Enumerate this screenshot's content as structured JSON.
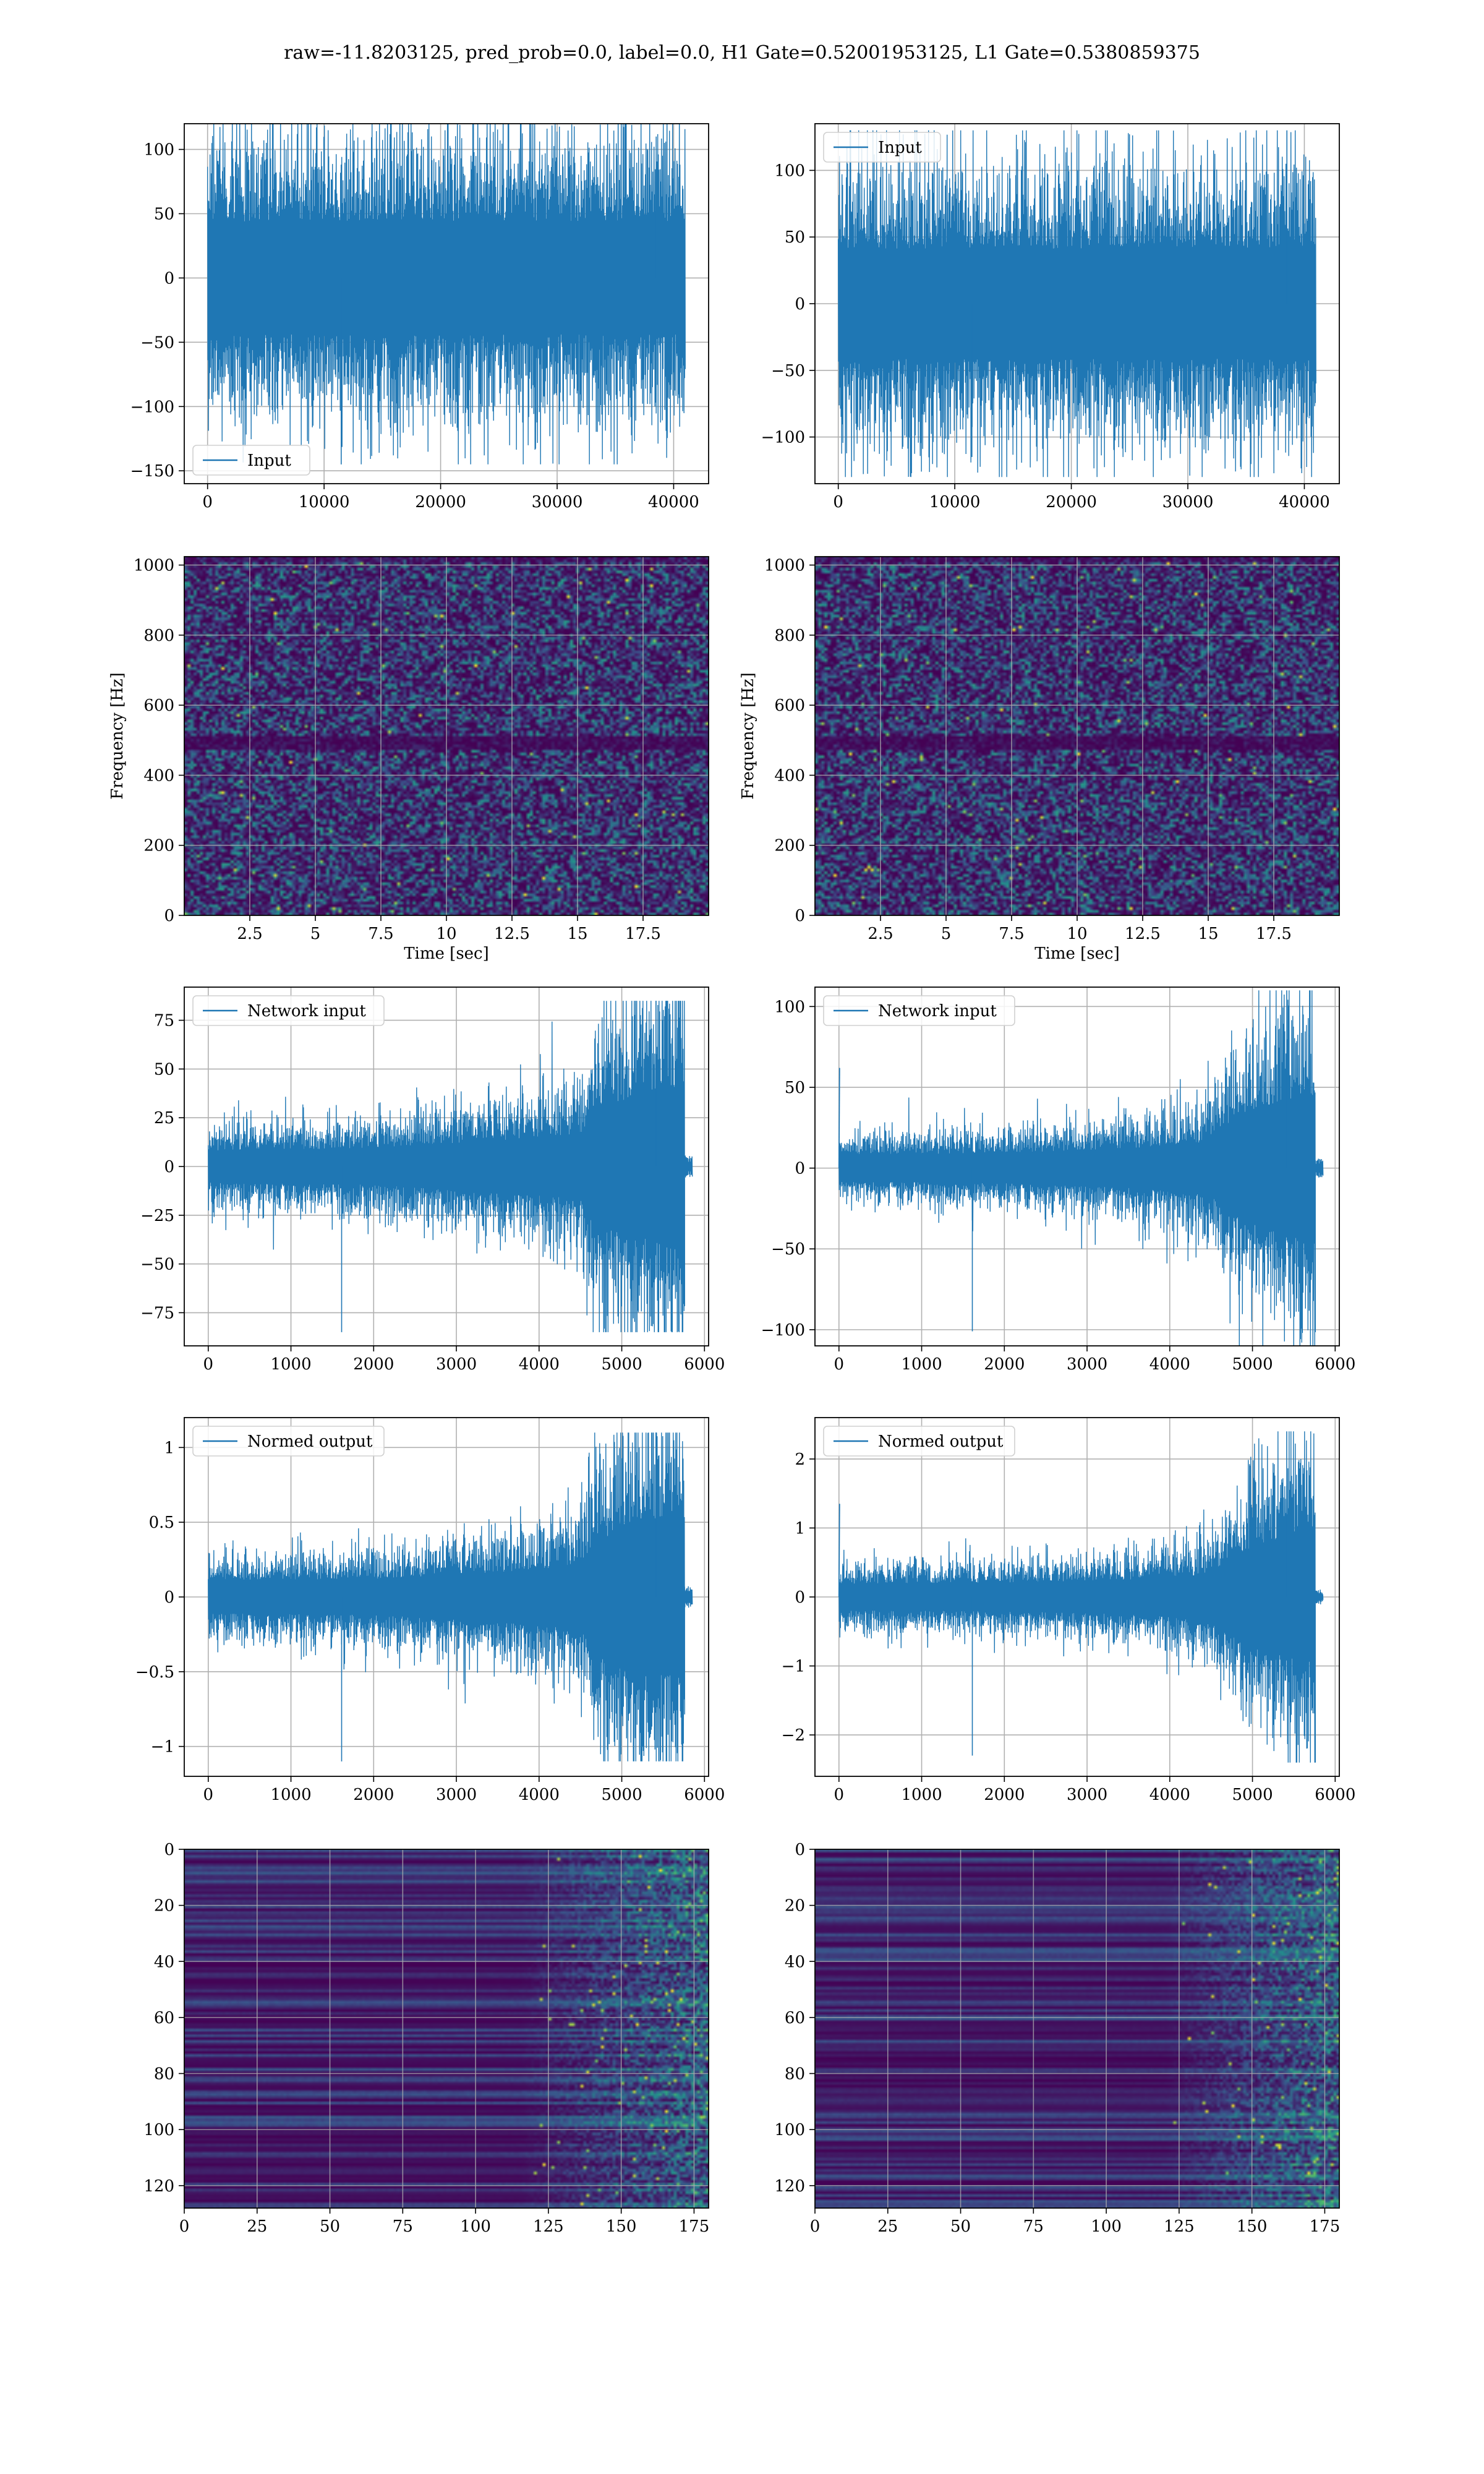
{
  "figure": {
    "suptitle": "raw=-11.8203125, pred_prob=0.0, label=0.0, H1 Gate=0.52001953125, L1 Gate=0.5380859375",
    "colors": {
      "line": "#1f77b4",
      "viridis_low": "#440154",
      "viridis_mid": "#21918c",
      "viridis_high": "#fde725",
      "grid": "#b0b0b0"
    }
  },
  "chart_data": [
    {
      "id": "h1-input",
      "type": "line",
      "series": [
        {
          "name": "Input",
          "n_points": 40960,
          "x_range": [
            0,
            40960
          ],
          "amplitude_mean": 0,
          "amplitude_envelope": 80,
          "y_extrema": [
            -145,
            110
          ]
        }
      ],
      "xlim": [
        -2000,
        43000
      ],
      "ylim": [
        -160,
        120
      ],
      "xticks": [
        0,
        10000,
        20000,
        30000,
        40000
      ],
      "yticks": [
        -150,
        -100,
        -50,
        0,
        50,
        100
      ],
      "legend": "lower-left",
      "grid": true,
      "xlabel": "",
      "ylabel": ""
    },
    {
      "id": "l1-input",
      "type": "line",
      "series": [
        {
          "name": "Input",
          "n_points": 40960,
          "x_range": [
            0,
            40960
          ],
          "amplitude_mean": 0,
          "amplitude_envelope": 75,
          "y_extrema": [
            -115,
            130
          ]
        }
      ],
      "xlim": [
        -2000,
        43000
      ],
      "ylim": [
        -135,
        135
      ],
      "xticks": [
        0,
        10000,
        20000,
        30000,
        40000
      ],
      "yticks": [
        -100,
        -50,
        0,
        50,
        100
      ],
      "legend": "upper-left",
      "grid": true,
      "xlabel": "",
      "ylabel": ""
    },
    {
      "id": "h1-spectrogram",
      "type": "heatmap",
      "xlim": [
        0,
        20
      ],
      "ylim": [
        0,
        1024
      ],
      "xticks": [
        2.5,
        5.0,
        7.5,
        10.0,
        12.5,
        15.0,
        17.5
      ],
      "yticks": [
        0,
        200,
        400,
        600,
        800,
        1000
      ],
      "xlabel": "Time [sec]",
      "ylabel": "Frequency [Hz]",
      "grid": true,
      "colormap": "viridis",
      "dark_band_hz": 500
    },
    {
      "id": "l1-spectrogram",
      "type": "heatmap",
      "xlim": [
        0,
        20
      ],
      "ylim": [
        0,
        1024
      ],
      "xticks": [
        2.5,
        5.0,
        7.5,
        10.0,
        12.5,
        15.0,
        17.5
      ],
      "yticks": [
        0,
        200,
        400,
        600,
        800,
        1000
      ],
      "xlabel": "Time [sec]",
      "ylabel": "Frequency [Hz]",
      "grid": true,
      "colormap": "viridis",
      "dark_band_hz": 500
    },
    {
      "id": "h1-network-input",
      "type": "line",
      "series": [
        {
          "name": "Network input",
          "n_points": 5760,
          "x_range": [
            0,
            5760
          ],
          "envelope": [
            {
              "x": 0,
              "a": 15
            },
            {
              "x": 2000,
              "a": 17
            },
            {
              "x": 3500,
              "a": 24
            },
            {
              "x": 4500,
              "a": 30
            },
            {
              "x": 4700,
              "a": 55
            },
            {
              "x": 5400,
              "a": 70
            },
            {
              "x": 5740,
              "a": 75
            }
          ],
          "tail": {
            "x_range": [
              5760,
              5850
            ],
            "a": 4
          },
          "y_extrema": [
            -85,
            85
          ]
        }
      ],
      "xlim": [
        -290,
        6050
      ],
      "ylim": [
        -92,
        92
      ],
      "xticks": [
        0,
        1000,
        2000,
        3000,
        4000,
        5000,
        6000
      ],
      "yticks": [
        -75,
        -50,
        -25,
        0,
        25,
        50,
        75
      ],
      "legend": "upper-left",
      "grid": true,
      "xlabel": "",
      "ylabel": ""
    },
    {
      "id": "l1-network-input",
      "type": "line",
      "series": [
        {
          "name": "Network input",
          "n_points": 5760,
          "x_range": [
            0,
            5760
          ],
          "envelope": [
            {
              "x": 0,
              "a": 15
            },
            {
              "x": 2000,
              "a": 17
            },
            {
              "x": 3500,
              "a": 22
            },
            {
              "x": 4500,
              "a": 30
            },
            {
              "x": 4700,
              "a": 50
            },
            {
              "x": 5400,
              "a": 75
            },
            {
              "x": 5740,
              "a": 80
            }
          ],
          "tail": {
            "x_range": [
              5760,
              5850
            ],
            "a": 4
          },
          "spike": {
            "x": 0,
            "y": 62
          },
          "y_extrema": [
            -101,
            110
          ]
        }
      ],
      "xlim": [
        -290,
        6050
      ],
      "ylim": [
        -110,
        112
      ],
      "xticks": [
        0,
        1000,
        2000,
        3000,
        4000,
        5000,
        6000
      ],
      "yticks": [
        -100,
        -50,
        0,
        50,
        100
      ],
      "legend": "upper-left",
      "grid": true,
      "xlabel": "",
      "ylabel": ""
    },
    {
      "id": "h1-normed-output",
      "type": "line",
      "series": [
        {
          "name": "Normed output",
          "n_points": 5760,
          "x_range": [
            0,
            5760
          ],
          "envelope": [
            {
              "x": 0,
              "a": 0.2
            },
            {
              "x": 2000,
              "a": 0.22
            },
            {
              "x": 3500,
              "a": 0.3
            },
            {
              "x": 4500,
              "a": 0.38
            },
            {
              "x": 4700,
              "a": 0.7
            },
            {
              "x": 5400,
              "a": 0.9
            },
            {
              "x": 5740,
              "a": 0.95
            }
          ],
          "tail": {
            "x_range": [
              5760,
              5850
            ],
            "a": 0.05
          },
          "y_extrema": [
            -1.1,
            1.1
          ]
        }
      ],
      "xlim": [
        -290,
        6050
      ],
      "ylim": [
        -1.2,
        1.2
      ],
      "xticks": [
        0,
        1000,
        2000,
        3000,
        4000,
        5000,
        6000
      ],
      "yticks": [
        -1.0,
        -0.5,
        0.0,
        0.5,
        1.0
      ],
      "legend": "upper-left",
      "grid": true,
      "xlabel": "",
      "ylabel": ""
    },
    {
      "id": "l1-normed-output",
      "type": "line",
      "series": [
        {
          "name": "Normed output",
          "n_points": 5760,
          "x_range": [
            0,
            5760
          ],
          "envelope": [
            {
              "x": 0,
              "a": 0.35
            },
            {
              "x": 2000,
              "a": 0.38
            },
            {
              "x": 3500,
              "a": 0.45
            },
            {
              "x": 4500,
              "a": 0.6
            },
            {
              "x": 4700,
              "a": 1.0
            },
            {
              "x": 5400,
              "a": 1.6
            },
            {
              "x": 5740,
              "a": 1.7
            }
          ],
          "tail": {
            "x_range": [
              5760,
              5850
            ],
            "a": 0.08
          },
          "spike": {
            "x": 0,
            "y": 1.35
          },
          "y_extrema": [
            -2.3,
            2.4
          ]
        }
      ],
      "xlim": [
        -290,
        6050
      ],
      "ylim": [
        -2.6,
        2.6
      ],
      "xticks": [
        0,
        1000,
        2000,
        3000,
        4000,
        5000,
        6000
      ],
      "yticks": [
        -2,
        -1,
        0,
        1,
        2
      ],
      "legend": "upper-left",
      "grid": true,
      "xlabel": "",
      "ylabel": ""
    },
    {
      "id": "h1-feature-map",
      "type": "heatmap",
      "xlim": [
        0,
        180
      ],
      "ylim": [
        128,
        0
      ],
      "xticks": [
        0,
        25,
        50,
        75,
        100,
        125,
        150,
        175
      ],
      "yticks": [
        0,
        20,
        40,
        60,
        80,
        100,
        120
      ],
      "grid": true,
      "colormap": "viridis",
      "activity_onset": 115,
      "xlabel": "",
      "ylabel": ""
    },
    {
      "id": "l1-feature-map",
      "type": "heatmap",
      "xlim": [
        0,
        180
      ],
      "ylim": [
        128,
        0
      ],
      "xticks": [
        0,
        25,
        50,
        75,
        100,
        125,
        150,
        175
      ],
      "yticks": [
        0,
        20,
        40,
        60,
        80,
        100,
        120
      ],
      "grid": true,
      "colormap": "viridis",
      "activity_onset": 120,
      "xlabel": "",
      "ylabel": ""
    }
  ]
}
